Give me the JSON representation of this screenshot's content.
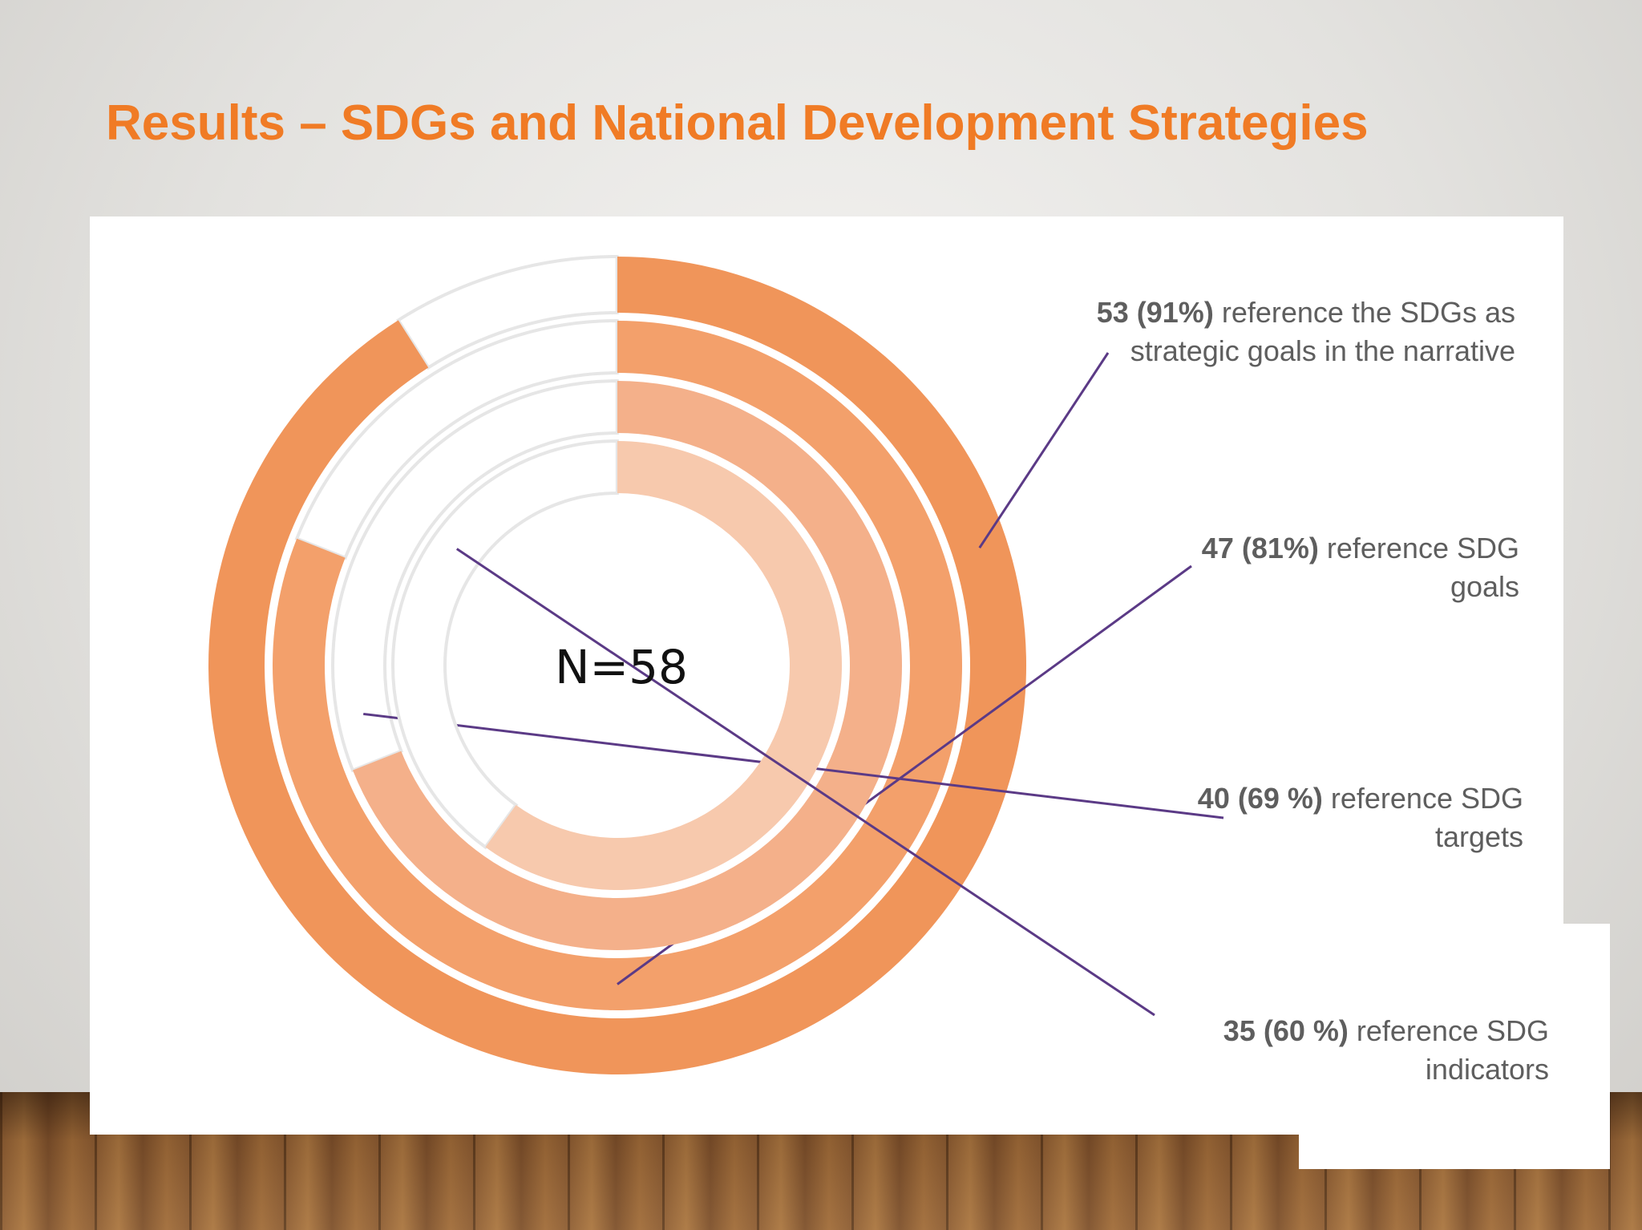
{
  "slide": {
    "title": "Results – SDGs and National Development Strategies"
  },
  "chart_data": {
    "type": "radial-bar",
    "total_label": "N=58",
    "total": 58,
    "series": [
      {
        "count": 53,
        "percent": 91,
        "count_text": "53 (91%)",
        "label_text": "reference the SDGs as strategic goals in the narrative",
        "label_lines": [
          "53 (91%) reference the",
          "SDGs as strategic goals in",
          "the narrative"
        ],
        "color": "#f0955a"
      },
      {
        "count": 47,
        "percent": 81,
        "count_text": "47 (81%)",
        "label_text": "reference SDG goals",
        "label_lines": [
          "47 (81%) reference",
          "SDG goals"
        ],
        "color": "#f3a06b"
      },
      {
        "count": 40,
        "percent": 69,
        "count_text": "40 (69 %)",
        "label_text": "reference SDG targets",
        "label_lines": [
          "40 (69 %) reference",
          "SDG targets"
        ],
        "color": "#f4b08a"
      },
      {
        "count": 35,
        "percent": 60,
        "count_text": "35 (60 %)",
        "label_text": "reference SDG indicators",
        "label_lines": [
          "35 (60 %) reference SDG",
          "indicators"
        ],
        "color": "#f7c9ad"
      }
    ],
    "leader_color": "#5b3a86",
    "track_color": "#e6e6e6"
  }
}
